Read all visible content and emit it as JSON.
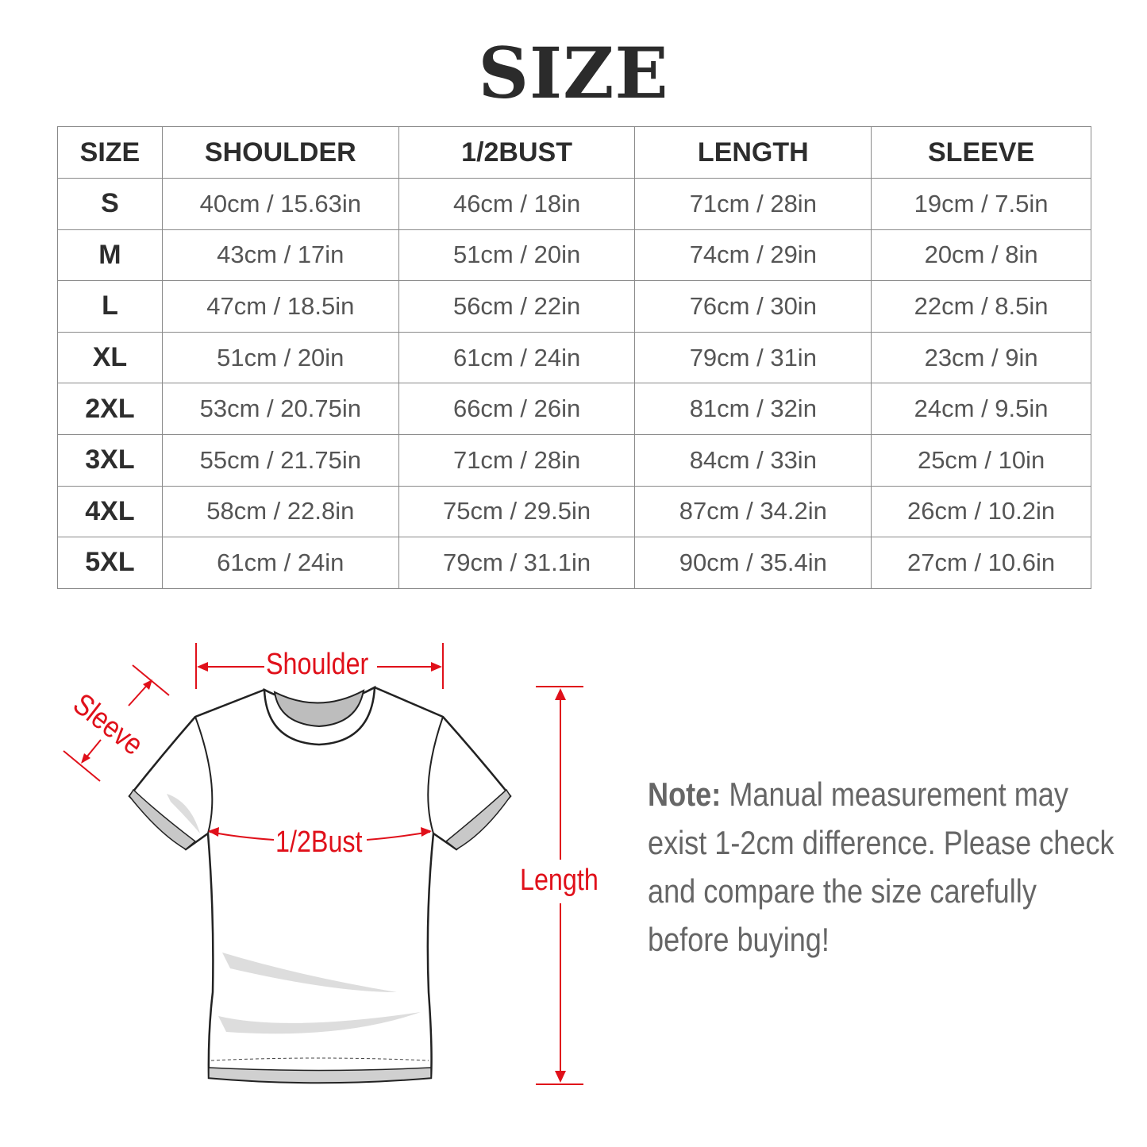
{
  "title": "SIZE",
  "table": {
    "headers": [
      "SIZE",
      "SHOULDER",
      "1/2BUST",
      "LENGTH",
      "SLEEVE"
    ],
    "rows": [
      [
        "S",
        "40cm / 15.63in",
        "46cm / 18in",
        "71cm / 28in",
        "19cm / 7.5in"
      ],
      [
        "M",
        "43cm / 17in",
        "51cm / 20in",
        "74cm / 29in",
        "20cm / 8in"
      ],
      [
        "L",
        "47cm / 18.5in",
        "56cm / 22in",
        "76cm / 30in",
        "22cm / 8.5in"
      ],
      [
        "XL",
        "51cm / 20in",
        "61cm / 24in",
        "79cm / 31in",
        "23cm / 9in"
      ],
      [
        "2XL",
        "53cm / 20.75in",
        "66cm / 26in",
        "81cm / 32in",
        "24cm / 9.5in"
      ],
      [
        "3XL",
        "55cm / 21.75in",
        "71cm / 28in",
        "84cm / 33in",
        "25cm / 10in"
      ],
      [
        "4XL",
        "58cm / 22.8in",
        "75cm / 29.5in",
        "87cm / 34.2in",
        "26cm / 10.2in"
      ],
      [
        "5XL",
        "61cm / 24in",
        "79cm / 31.1in",
        "90cm / 35.4in",
        "27cm / 10.6in"
      ]
    ]
  },
  "diagram": {
    "shoulder": "Shoulder",
    "sleeve": "Sleeve",
    "bust": "1/2Bust",
    "length": "Length",
    "accent_color": "#e0101a"
  },
  "note": {
    "label": "Note:",
    "text": "Manual measurement may exist 1-2cm difference. Please check and compare the size carefully before buying!"
  }
}
